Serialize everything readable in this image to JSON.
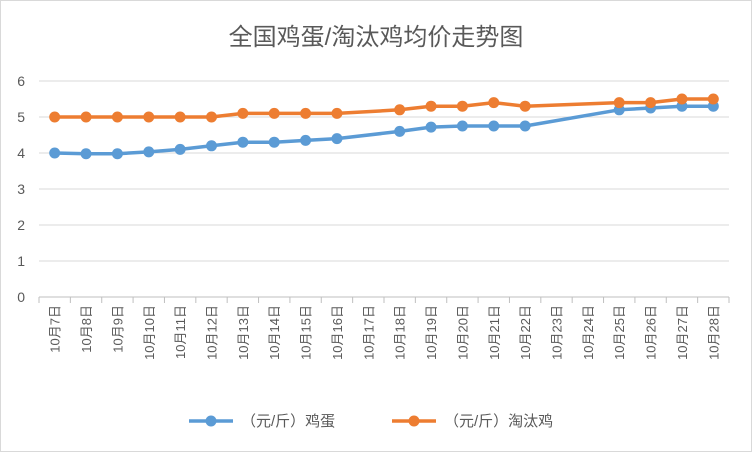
{
  "chart_data": {
    "type": "line",
    "title": "全国鸡蛋/淘汰鸡均价走势图",
    "xlabel": "",
    "ylabel": "",
    "ylim": [
      0,
      6
    ],
    "yticks": [
      0,
      1,
      2,
      3,
      4,
      5,
      6
    ],
    "grid": true,
    "legend_position": "bottom",
    "categories": [
      "10月7日",
      "10月8日",
      "10月9日",
      "10月10日",
      "10月11日",
      "10月12日",
      "10月13日",
      "10月14日",
      "10月15日",
      "10月16日",
      "10月17日",
      "10月18日",
      "10月19日",
      "10月20日",
      "10月21日",
      "10月22日",
      "10月23日",
      "10月24日",
      "10月25日",
      "10月26日",
      "10月27日",
      "10月28日"
    ],
    "series": [
      {
        "name": "（元/斤）鸡蛋",
        "color": "#5b9bd5",
        "values": [
          4.0,
          3.98,
          3.98,
          4.03,
          4.1,
          4.2,
          4.3,
          4.3,
          4.35,
          4.4,
          null,
          4.6,
          4.72,
          4.75,
          4.75,
          4.75,
          null,
          null,
          5.2,
          5.25,
          5.3,
          5.3
        ]
      },
      {
        "name": "（元/斤）淘汰鸡",
        "color": "#ed7d31",
        "values": [
          5.0,
          5.0,
          5.0,
          5.0,
          5.0,
          5.0,
          5.1,
          5.1,
          5.1,
          5.1,
          null,
          5.2,
          5.3,
          5.3,
          5.4,
          5.3,
          null,
          null,
          5.4,
          5.4,
          5.5,
          5.5
        ]
      }
    ]
  }
}
